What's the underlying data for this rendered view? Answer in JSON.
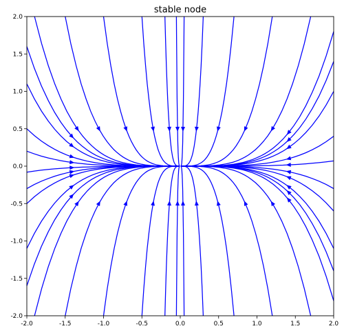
{
  "chart_data": {
    "type": "line",
    "subtype": "streamplot",
    "title": "stable node",
    "xlabel": "",
    "ylabel": "",
    "xlim": [
      -2.0,
      2.0
    ],
    "ylim": [
      -2.0,
      2.0
    ],
    "xticks": [
      "-2.0",
      "-1.5",
      "-1.0",
      "-0.5",
      "0.0",
      "0.5",
      "1.0",
      "1.5",
      "2.0"
    ],
    "yticks": [
      "2.0",
      "1.5",
      "1.0",
      "0.5",
      "0.0",
      "-0.5",
      "-1.0",
      "-1.5",
      "-2.0"
    ],
    "grid": false,
    "line_color": "#0000ff",
    "vector_field": {
      "dx": "-x",
      "dy": "-4y"
    },
    "series": [
      {
        "start": [
          -1.9,
          2.0
        ]
      },
      {
        "start": [
          -1.5,
          2.0
        ]
      },
      {
        "start": [
          -1.0,
          2.0
        ]
      },
      {
        "start": [
          -0.5,
          2.0
        ]
      },
      {
        "start": [
          -0.2,
          2.0
        ]
      },
      {
        "start": [
          -0.05,
          2.0
        ]
      },
      {
        "start": [
          0.05,
          2.0
        ]
      },
      {
        "start": [
          0.3,
          2.0
        ]
      },
      {
        "start": [
          0.7,
          2.0
        ]
      },
      {
        "start": [
          1.2,
          2.0
        ]
      },
      {
        "start": [
          1.7,
          2.0
        ]
      },
      {
        "start": [
          2.0,
          1.8
        ]
      },
      {
        "start": [
          -2.0,
          1.6
        ]
      },
      {
        "start": [
          -2.0,
          1.1
        ]
      },
      {
        "start": [
          -2.0,
          0.5
        ]
      },
      {
        "start": [
          -2.0,
          0.2
        ]
      },
      {
        "start": [
          -2.0,
          -0.08
        ]
      },
      {
        "start": [
          2.0,
          0.07
        ]
      },
      {
        "start": [
          2.0,
          0.4
        ]
      },
      {
        "start": [
          2.0,
          1.0
        ]
      },
      {
        "start": [
          2.0,
          1.4
        ]
      },
      {
        "start": [
          -1.9,
          -2.0
        ]
      },
      {
        "start": [
          -1.5,
          -2.0
        ]
      },
      {
        "start": [
          -1.0,
          -2.0
        ]
      },
      {
        "start": [
          -0.5,
          -2.0
        ]
      },
      {
        "start": [
          -0.2,
          -2.0
        ]
      },
      {
        "start": [
          -0.05,
          -2.0
        ]
      },
      {
        "start": [
          0.05,
          -2.0
        ]
      },
      {
        "start": [
          0.3,
          -2.0
        ]
      },
      {
        "start": [
          0.7,
          -2.0
        ]
      },
      {
        "start": [
          1.2,
          -2.0
        ]
      },
      {
        "start": [
          1.7,
          -2.0
        ]
      },
      {
        "start": [
          2.0,
          -1.8
        ]
      },
      {
        "start": [
          -2.0,
          -1.6
        ]
      },
      {
        "start": [
          -2.0,
          -1.1
        ]
      },
      {
        "start": [
          -2.0,
          -0.5
        ]
      },
      {
        "start": [
          -2.0,
          -0.3
        ]
      },
      {
        "start": [
          2.0,
          -0.3
        ]
      },
      {
        "start": [
          2.0,
          -0.6
        ]
      },
      {
        "start": [
          2.0,
          -1.1
        ]
      },
      {
        "start": [
          2.0,
          -1.4
        ]
      }
    ]
  }
}
